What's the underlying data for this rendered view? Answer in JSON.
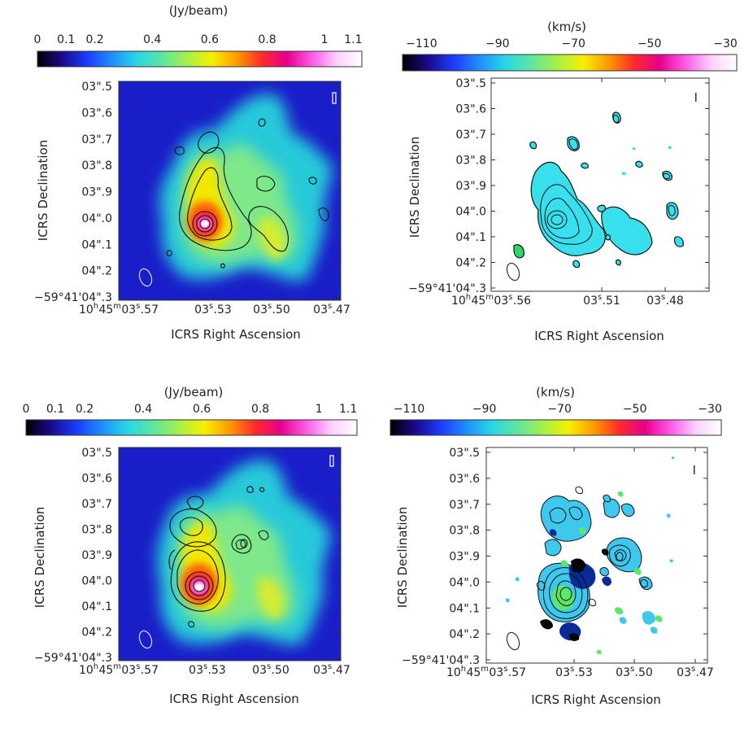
{
  "figure": {
    "panels": [
      {
        "id": "top-left",
        "kind": "intensity",
        "colorbar_unit": "(Jy/beam)",
        "colorbar_ticks": [
          "0",
          "0.1",
          "0.2",
          "0.4",
          "0.6",
          "0.8",
          "1",
          "1.1"
        ],
        "colorbar_values": [
          0,
          0.1,
          0.2,
          0.4,
          0.6,
          0.8,
          1.0,
          1.1
        ],
        "colorbar_range": [
          0,
          1.13
        ],
        "y_ticks": [
          "03\".5",
          "03\".6",
          "03\".7",
          "03\".8",
          "03\".9",
          "04\".0",
          "04\".1",
          "04\".2",
          "−59°41'04\".3"
        ],
        "x_ticks": [
          "10h45m03s.57",
          "03s.53",
          "03s.50",
          "03s.47"
        ],
        "x_ticks_display": [
          {
            "main": "10",
            "sup1": "h",
            "mid": "45",
            "sup2": "m",
            "tail": "03",
            "sup3": "s",
            "end": ".57"
          },
          {
            "main": "03",
            "sup3": "s",
            "end": ".53"
          },
          {
            "main": "03",
            "sup3": "s",
            "end": ".50"
          },
          {
            "main": "03",
            "sup3": "s",
            "end": ".47"
          }
        ],
        "xlabel": "ICRS Right Ascension",
        "ylabel": "ICRS Declination"
      },
      {
        "id": "top-right",
        "kind": "velocity",
        "colorbar_unit": "(km/s)",
        "colorbar_ticks": [
          "−110",
          "−90",
          "−70",
          "−50",
          "−30"
        ],
        "colorbar_values": [
          -110,
          -90,
          -70,
          -50,
          -30
        ],
        "colorbar_range": [
          -115,
          -27
        ],
        "y_ticks": [
          "03\".5",
          "03\".6",
          "03\".7",
          "03\".8",
          "03\".9",
          "04\".0",
          "04\".1",
          "04\".2",
          "−59°41'04\".3"
        ],
        "x_ticks_display": [
          {
            "main": "10",
            "sup1": "h",
            "mid": "45",
            "sup2": "m",
            "tail": "03",
            "sup3": "s",
            "end": ".56"
          },
          {
            "main": "03",
            "sup3": "s",
            "end": ".51"
          },
          {
            "main": "03",
            "sup3": "s",
            "end": ".48"
          }
        ],
        "xlabel": "ICRS Right Ascension",
        "ylabel": "ICRS Declination"
      },
      {
        "id": "bottom-left",
        "kind": "intensity",
        "colorbar_unit": "(Jy/beam)",
        "colorbar_ticks": [
          "0",
          "0.1",
          "0.2",
          "0.4",
          "0.6",
          "0.8",
          "1",
          "1.1"
        ],
        "colorbar_values": [
          0,
          0.1,
          0.2,
          0.4,
          0.6,
          0.8,
          1.0,
          1.1
        ],
        "colorbar_range": [
          0,
          1.13
        ],
        "y_ticks": [
          "03\".5",
          "03\".6",
          "03\".7",
          "03\".8",
          "03\".9",
          "04\".0",
          "04\".1",
          "04\".2",
          "−59°41'04\".3"
        ],
        "x_ticks_display": [
          {
            "main": "10",
            "sup1": "h",
            "mid": "45",
            "sup2": "m",
            "tail": "03",
            "sup3": "s",
            "end": ".57"
          },
          {
            "main": "03",
            "sup3": "s",
            "end": ".53"
          },
          {
            "main": "03",
            "sup3": "s",
            "end": ".50"
          },
          {
            "main": "03",
            "sup3": "s",
            "end": ".47"
          }
        ],
        "xlabel": "ICRS Right Ascension",
        "ylabel": "ICRS Declination"
      },
      {
        "id": "bottom-right",
        "kind": "velocity",
        "colorbar_unit": "(km/s)",
        "colorbar_ticks": [
          "−110",
          "−90",
          "−70",
          "−50",
          "−30"
        ],
        "colorbar_values": [
          -110,
          -90,
          -70,
          -50,
          -30
        ],
        "colorbar_range": [
          -115,
          -27
        ],
        "y_ticks": [
          "03\".5",
          "03\".6",
          "03\".7",
          "03\".8",
          "03\".9",
          "04\".0",
          "04\".1",
          "04\".2",
          "−59°41'04\".3"
        ],
        "x_ticks_display": [
          {
            "main": "10",
            "sup1": "h",
            "mid": "45",
            "sup2": "m",
            "tail": "03",
            "sup3": "s",
            "end": ".57"
          },
          {
            "main": "03",
            "sup3": "s",
            "end": ".53"
          },
          {
            "main": "03",
            "sup3": "s",
            "end": ".50"
          },
          {
            "main": "03",
            "sup3": "s",
            "end": ".47"
          }
        ],
        "xlabel": "ICRS Right Ascension",
        "ylabel": "ICRS Declination"
      }
    ]
  },
  "colors": {
    "intensity_cmap": [
      "#000000",
      "#1a0a8c",
      "#1c3cff",
      "#1f8fff",
      "#28d7e6",
      "#5ee6a0",
      "#a6f04a",
      "#f5f000",
      "#ff9a00",
      "#ff2a2a",
      "#e6008c",
      "#ff5ae6",
      "#ffd0ff",
      "#ffffff"
    ],
    "velocity_cmap": [
      "#000000",
      "#1a0a8c",
      "#1c3cff",
      "#1f8fff",
      "#28d7e6",
      "#5ee6a0",
      "#a6f04a",
      "#f5f000",
      "#ff9a00",
      "#ff2a2a",
      "#e6008c",
      "#ff5ae6",
      "#ffd0ff",
      "#ffffff"
    ],
    "map_background": "#1a1ec8",
    "contour": "#111111",
    "beam_on_map": "#d9d9d9",
    "beam_on_white": "#333333"
  }
}
